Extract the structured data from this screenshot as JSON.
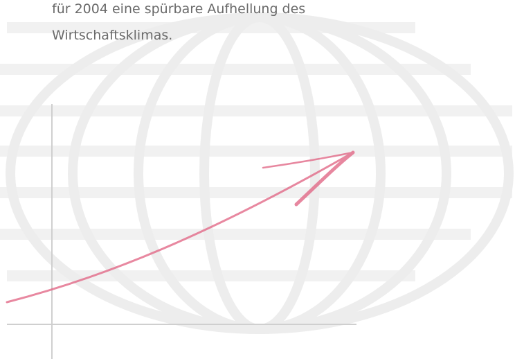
{
  "text": {
    "lines": [
      "für 2004 eine spürbare Aufhellung des",
      "Wirtschaftsklimas."
    ]
  }
}
